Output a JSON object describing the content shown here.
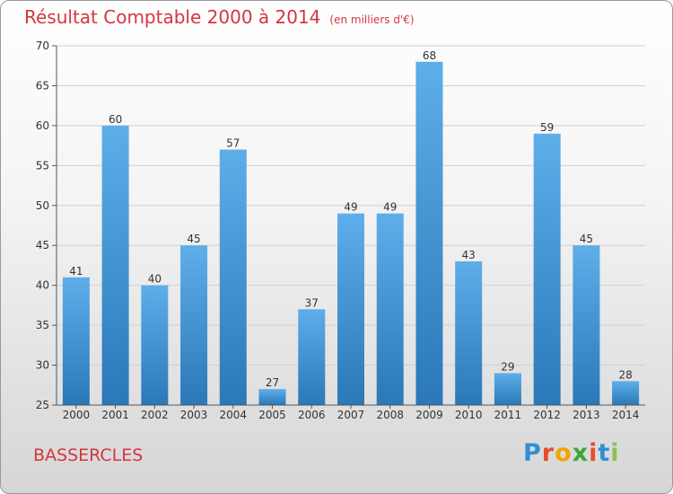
{
  "header": {
    "title": "Résultat Comptable 2000 à 2014",
    "subtitle": "(en milliers d'€)"
  },
  "footer": {
    "commune": "BASSERCLES",
    "logo_letters": [
      "P",
      "r",
      "o",
      "x",
      "i",
      "t",
      "i"
    ],
    "logo_colors": [
      "#2f8fd6",
      "#e94e2b",
      "#f2a400",
      "#3aa63c",
      "#e94e2b",
      "#2f8fd6",
      "#8bc34a"
    ]
  },
  "colors": {
    "bar_top": "#5eaeea",
    "bar_bottom": "#2a78b8",
    "accent": "#d4363f"
  },
  "chart_data": {
    "type": "bar",
    "categories": [
      "2000",
      "2001",
      "2002",
      "2003",
      "2004",
      "2005",
      "2006",
      "2007",
      "2008",
      "2009",
      "2010",
      "2011",
      "2012",
      "2013",
      "2014"
    ],
    "values": [
      41,
      60,
      40,
      45,
      57,
      27,
      37,
      49,
      49,
      68,
      43,
      29,
      59,
      45,
      28
    ],
    "ylim": [
      25,
      70
    ],
    "yticks": [
      25,
      30,
      35,
      40,
      45,
      50,
      55,
      60,
      65,
      70
    ],
    "grid": true,
    "legend": "none"
  }
}
